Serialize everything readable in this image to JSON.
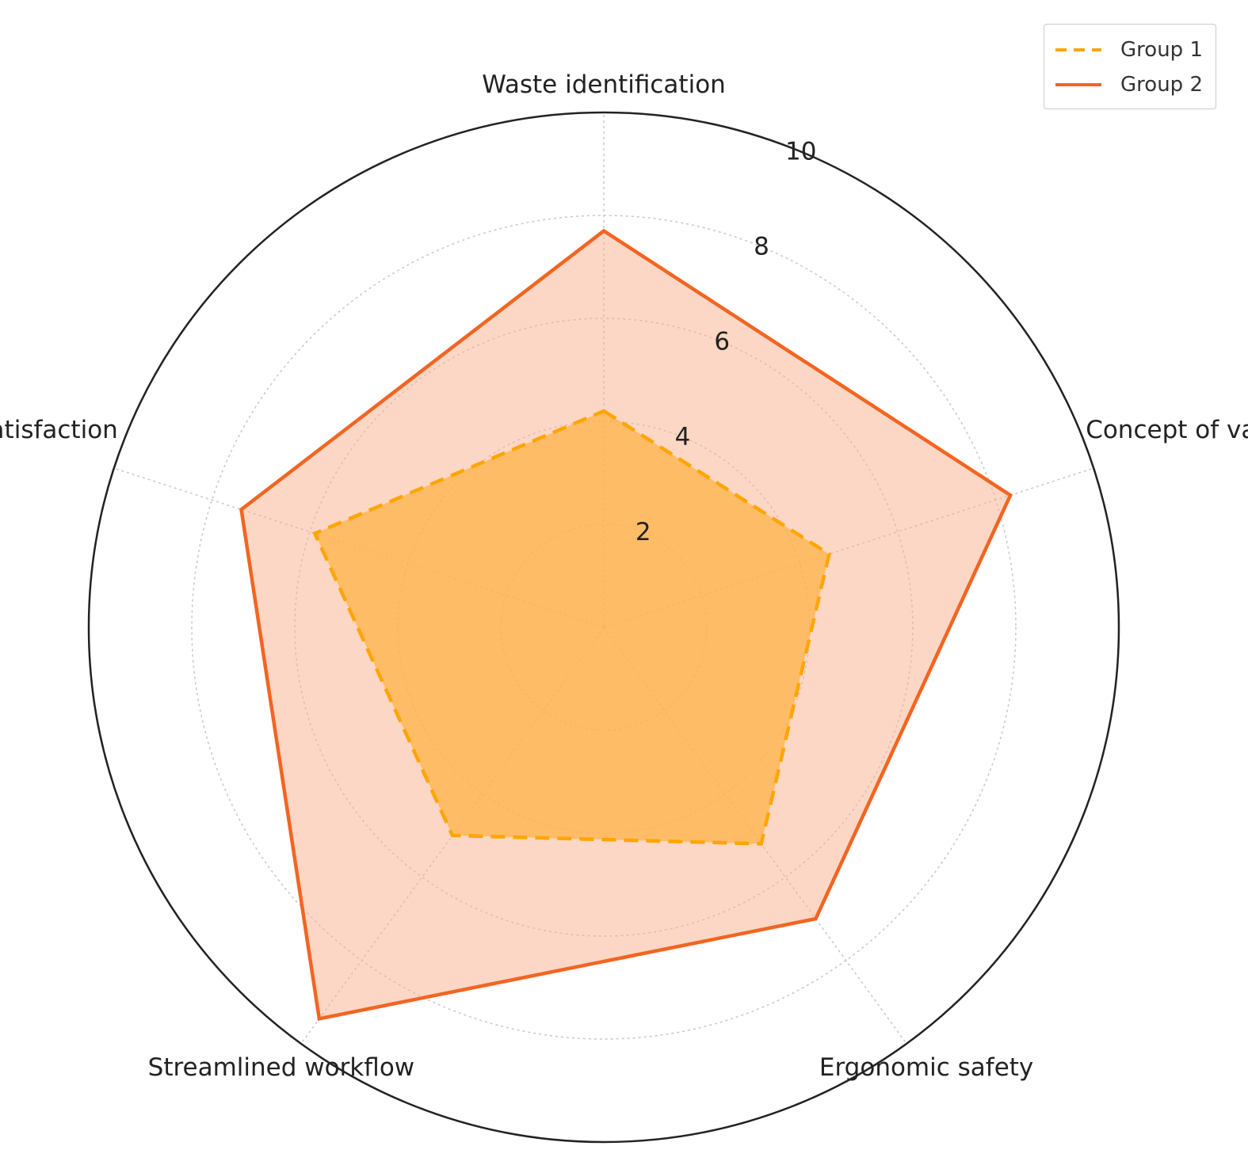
{
  "chart_data": {
    "type": "radar",
    "axes": [
      "Waste identification",
      "Concept of value",
      "Ergonomic safety",
      "Streamlined workflow",
      "Satisfaction"
    ],
    "rlim": [
      0,
      10
    ],
    "rticks": [
      "2",
      "4",
      "6",
      "8",
      "10"
    ],
    "grid": true,
    "legend_position": "top-right",
    "series": [
      {
        "name": "Group 1",
        "values": [
          4.2,
          4.6,
          5.2,
          5.0,
          5.9
        ],
        "color": "#FFA500",
        "line_style": "dashed",
        "fill": "#FFB347"
      },
      {
        "name": "Group 2",
        "values": [
          7.7,
          8.3,
          7.0,
          9.4,
          7.4
        ],
        "color": "#F26522",
        "line_style": "solid",
        "fill": "#F9B08C"
      }
    ]
  }
}
